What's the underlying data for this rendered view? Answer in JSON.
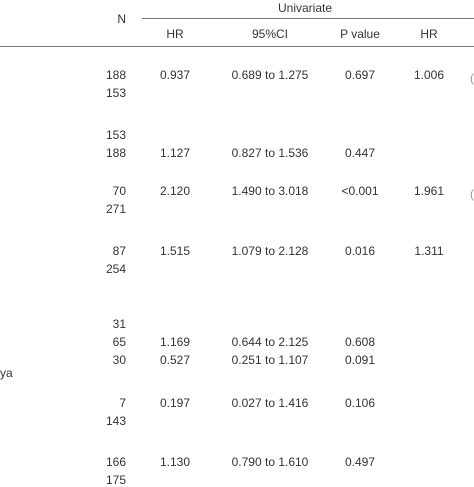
{
  "header": {
    "n_label": "N",
    "group_label": "Univariate",
    "columns": [
      "HR",
      "95%CI",
      "P value",
      "HR"
    ]
  },
  "left_fragment": "ya",
  "rows": [
    {
      "n": "188",
      "hr": "0.937",
      "ci": "0.689 to 1.275",
      "p": "0.697",
      "hr2": "1.006"
    },
    {
      "n": "153",
      "hr": "",
      "ci": "",
      "p": "",
      "hr2": ""
    },
    {
      "n": "153",
      "hr": "",
      "ci": "",
      "p": "",
      "hr2": ""
    },
    {
      "n": "188",
      "hr": "1.127",
      "ci": "0.827 to 1.536",
      "p": "0.447",
      "hr2": ""
    },
    {
      "n": "70",
      "hr": "2.120",
      "ci": "1.490 to 3.018",
      "p": "<0.001",
      "hr2": "1.961"
    },
    {
      "n": "271",
      "hr": "",
      "ci": "",
      "p": "",
      "hr2": ""
    },
    {
      "n": "87",
      "hr": "1.515",
      "ci": "1.079 to 2.128",
      "p": "0.016",
      "hr2": "1.311"
    },
    {
      "n": "254",
      "hr": "",
      "ci": "",
      "p": "",
      "hr2": ""
    },
    {
      "n": "31",
      "hr": "",
      "ci": "",
      "p": "",
      "hr2": ""
    },
    {
      "n": "65",
      "hr": "1.169",
      "ci": "0.644 to 2.125",
      "p": "0.608",
      "hr2": ""
    },
    {
      "n": "30",
      "hr": "0.527",
      "ci": "0.251 to 1.107",
      "p": "0.091",
      "hr2": ""
    },
    {
      "n": "7",
      "hr": "0.197",
      "ci": "0.027 to 1.416",
      "p": "0.106",
      "hr2": ""
    },
    {
      "n": "143",
      "hr": "",
      "ci": "",
      "p": "",
      "hr2": ""
    },
    {
      "n": "166",
      "hr": "1.130",
      "ci": "0.790 to 1.610",
      "p": "0.497",
      "hr2": ""
    },
    {
      "n": "175",
      "hr": "",
      "ci": "",
      "p": "",
      "hr2": ""
    }
  ]
}
